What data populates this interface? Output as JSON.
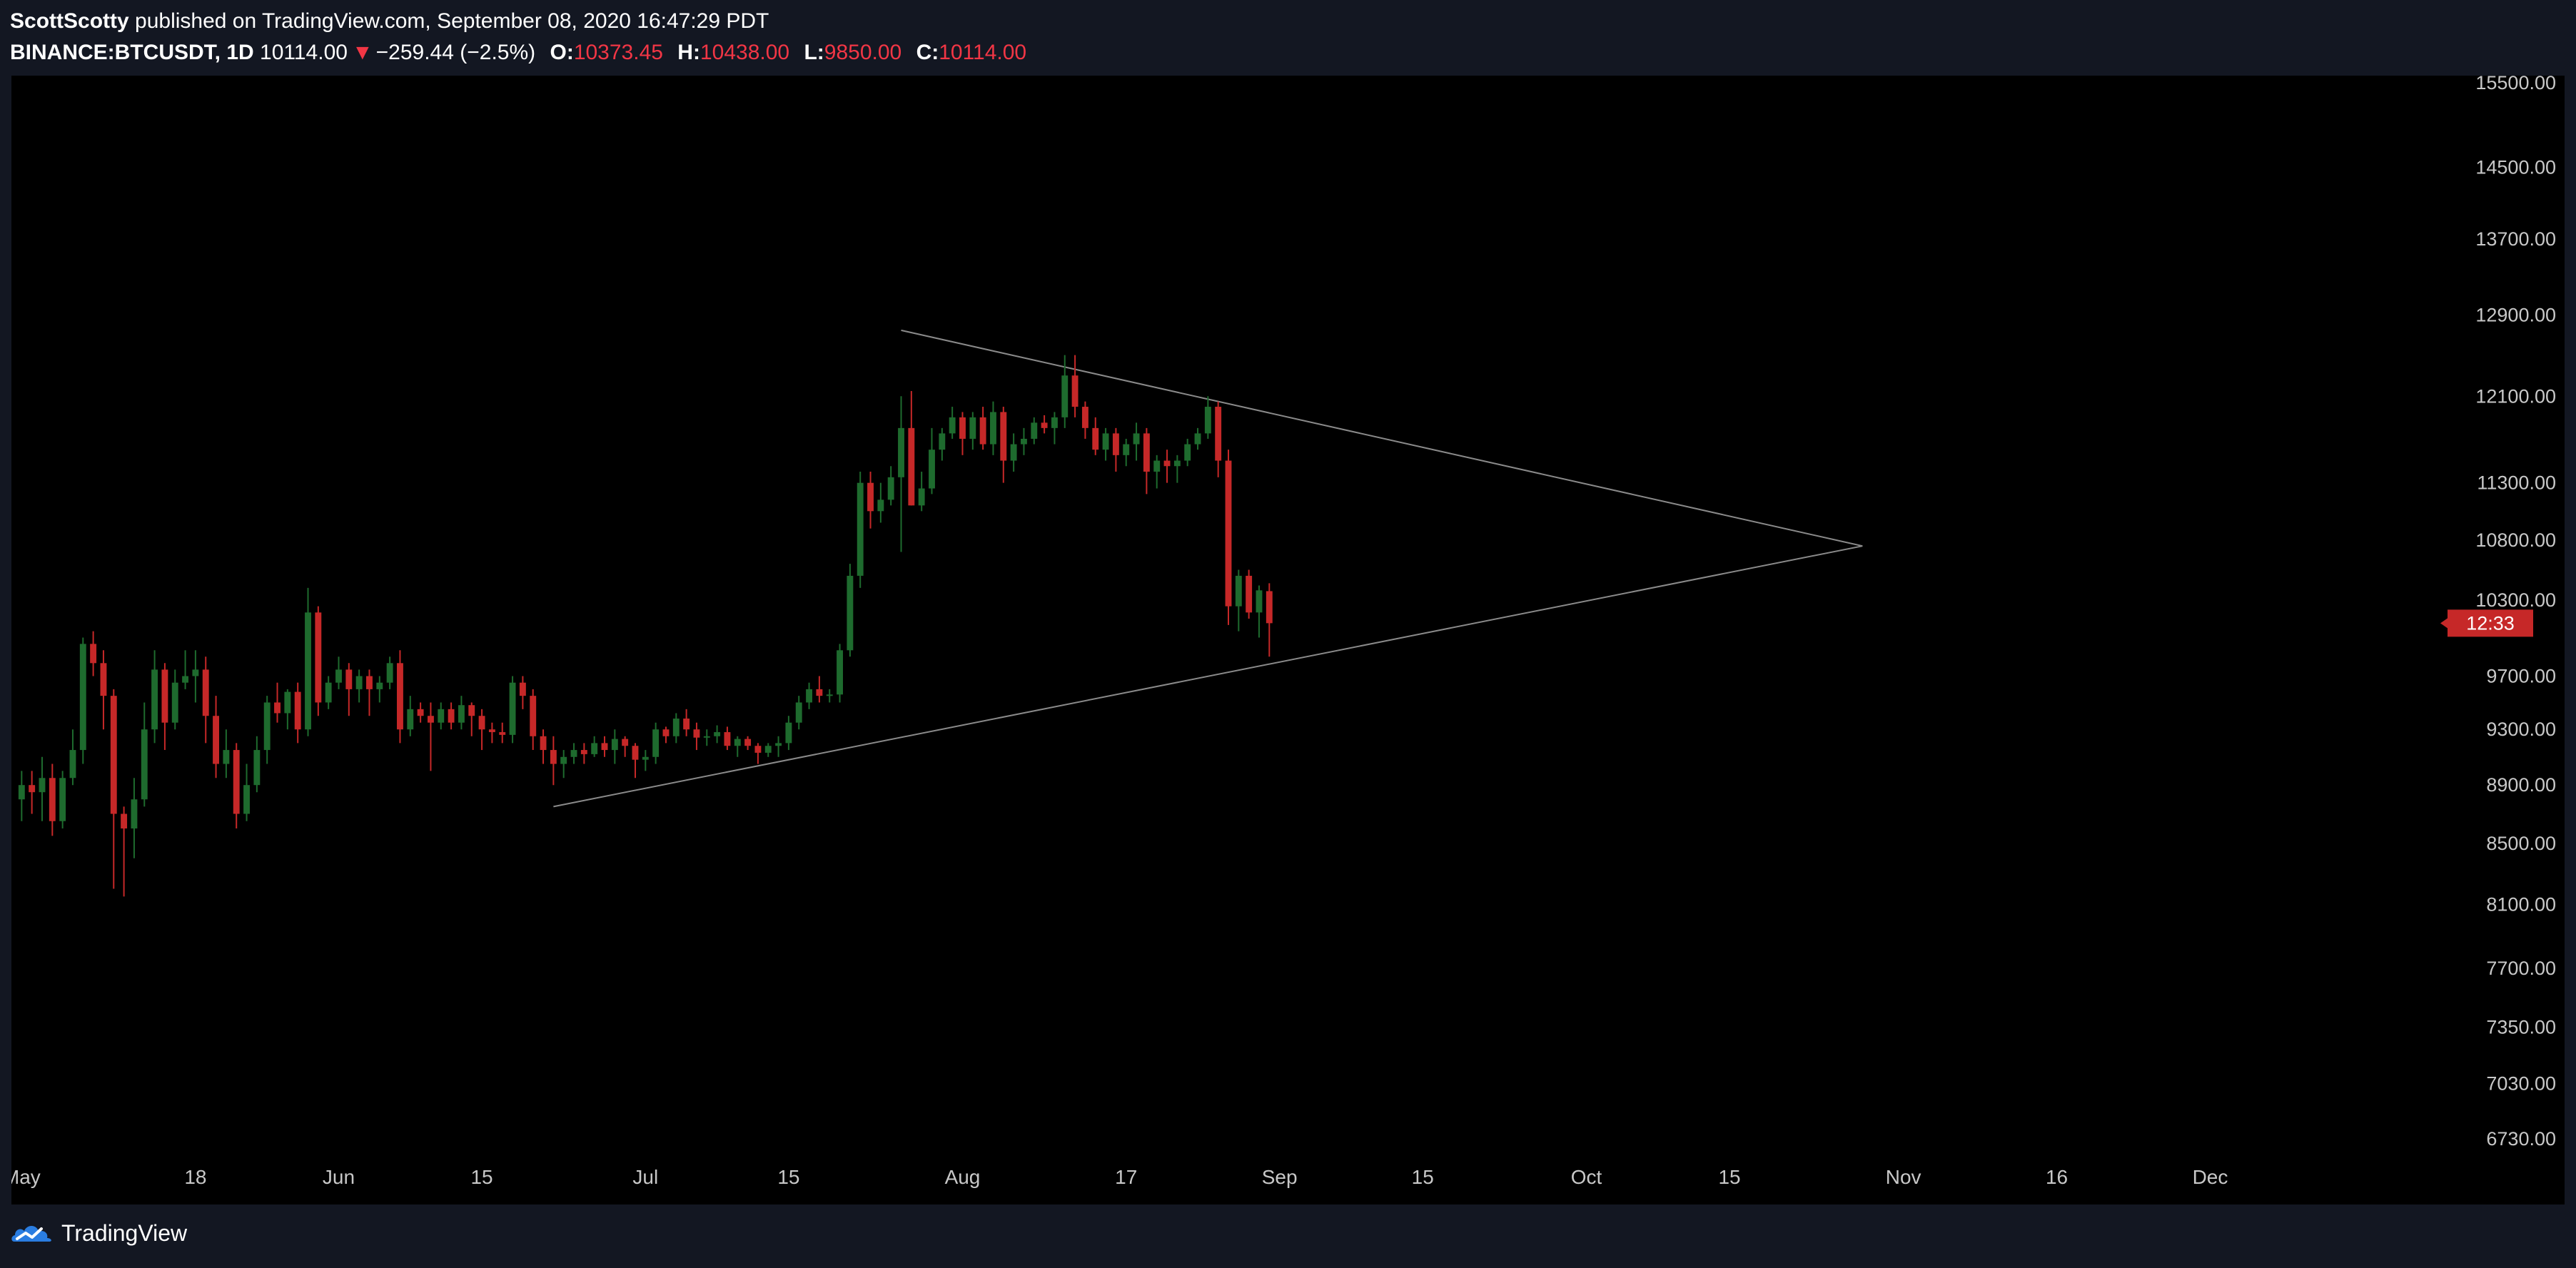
{
  "header": {
    "author": "ScottScotty",
    "published_text": "published on TradingView.com, September 08, 2020 16:47:29 PDT",
    "symbol": "BINANCE:BTCUSDT, 1D",
    "last": "10114.00",
    "arrow": "▼",
    "change": "−259.44 (−2.5%)",
    "open_label": "O:",
    "open_value": "10373.45",
    "high_label": "H:",
    "high_value": "10438.00",
    "low_label": "L:",
    "low_value": "9850.00",
    "close_label": "C:",
    "close_value": "10114.00"
  },
  "footer": {
    "brand": "TradingView"
  },
  "colors": {
    "background": "#000000",
    "chrome": "#131722",
    "up": "#26a69a",
    "up_body": "#1e6b2e",
    "down": "#c62828",
    "trendline": "#8a8a8a",
    "axis_text": "#c8c8c8",
    "countdown_bg": "#c62828"
  },
  "icons": {
    "logo": "tradingview-cloud-icon"
  },
  "chart_data": {
    "type": "candlestick",
    "symbol": "BINANCE:BTCUSDT",
    "interval": "1D",
    "x_start": "2020-05-01",
    "x_range": [
      "2020-04-30",
      "2020-12-24"
    ],
    "ylim": [
      6730,
      15500
    ],
    "y_scale": "log",
    "y_ticks": [
      "15500.00",
      "14500.00",
      "13700.00",
      "12900.00",
      "12100.00",
      "11300.00",
      "10800.00",
      "10300.00",
      "9700.00",
      "9300.00",
      "8900.00",
      "8500.00",
      "8100.00",
      "7700.00",
      "7350.00",
      "7030.00",
      "6730.00"
    ],
    "x_ticks": [
      {
        "date": "2020-05-01",
        "label": "May"
      },
      {
        "date": "2020-05-18",
        "label": "18"
      },
      {
        "date": "2020-06-01",
        "label": "Jun"
      },
      {
        "date": "2020-06-15",
        "label": "15"
      },
      {
        "date": "2020-07-01",
        "label": "Jul"
      },
      {
        "date": "2020-07-15",
        "label": "15"
      },
      {
        "date": "2020-08-01",
        "label": "Aug"
      },
      {
        "date": "2020-08-17",
        "label": "17"
      },
      {
        "date": "2020-09-01",
        "label": "Sep"
      },
      {
        "date": "2020-09-15",
        "label": "15"
      },
      {
        "date": "2020-10-01",
        "label": "Oct"
      },
      {
        "date": "2020-10-15",
        "label": "15"
      },
      {
        "date": "2020-11-01",
        "label": "Nov"
      },
      {
        "date": "2020-11-16",
        "label": "16"
      },
      {
        "date": "2020-12-01",
        "label": "Dec"
      }
    ],
    "ohlc": [
      [
        8800,
        9000,
        8650,
        8900
      ],
      [
        8900,
        9000,
        8700,
        8850
      ],
      [
        8850,
        9100,
        8650,
        8950
      ],
      [
        8950,
        9050,
        8550,
        8650
      ],
      [
        8650,
        9000,
        8600,
        8950
      ],
      [
        8950,
        9300,
        8900,
        9150
      ],
      [
        9150,
        10000,
        9050,
        9950
      ],
      [
        9950,
        10050,
        9700,
        9800
      ],
      [
        9800,
        9900,
        9300,
        9550
      ],
      [
        9550,
        9600,
        8200,
        8700
      ],
      [
        8700,
        8750,
        8150,
        8600
      ],
      [
        8600,
        8950,
        8400,
        8800
      ],
      [
        8800,
        9500,
        8750,
        9300
      ],
      [
        9300,
        9900,
        9200,
        9750
      ],
      [
        9750,
        9800,
        9150,
        9350
      ],
      [
        9350,
        9750,
        9300,
        9650
      ],
      [
        9650,
        9900,
        9600,
        9700
      ],
      [
        9700,
        9900,
        9500,
        9750
      ],
      [
        9750,
        9850,
        9200,
        9400
      ],
      [
        9400,
        9550,
        8950,
        9050
      ],
      [
        9050,
        9300,
        8950,
        9150
      ],
      [
        9150,
        9200,
        8600,
        8700
      ],
      [
        8700,
        9050,
        8650,
        8900
      ],
      [
        8900,
        9250,
        8850,
        9150
      ],
      [
        9150,
        9550,
        9050,
        9500
      ],
      [
        9500,
        9650,
        9350,
        9420
      ],
      [
        9420,
        9600,
        9300,
        9580
      ],
      [
        9580,
        9650,
        9200,
        9300
      ],
      [
        9300,
        10400,
        9250,
        10200
      ],
      [
        10200,
        10250,
        9400,
        9500
      ],
      [
        9500,
        9700,
        9450,
        9650
      ],
      [
        9650,
        9850,
        9600,
        9750
      ],
      [
        9750,
        9800,
        9400,
        9600
      ],
      [
        9600,
        9750,
        9500,
        9700
      ],
      [
        9700,
        9750,
        9400,
        9600
      ],
      [
        9600,
        9700,
        9500,
        9650
      ],
      [
        9650,
        9850,
        9600,
        9800
      ],
      [
        9800,
        9900,
        9200,
        9300
      ],
      [
        9300,
        9550,
        9250,
        9450
      ],
      [
        9450,
        9500,
        9350,
        9400
      ],
      [
        9400,
        9500,
        9000,
        9350
      ],
      [
        9350,
        9500,
        9300,
        9450
      ],
      [
        9450,
        9500,
        9300,
        9350
      ],
      [
        9350,
        9550,
        9300,
        9480
      ],
      [
        9480,
        9500,
        9250,
        9400
      ],
      [
        9400,
        9450,
        9150,
        9300
      ],
      [
        9300,
        9350,
        9200,
        9280
      ],
      [
        9280,
        9350,
        9200,
        9260
      ],
      [
        9260,
        9700,
        9200,
        9650
      ],
      [
        9650,
        9700,
        9450,
        9550
      ],
      [
        9550,
        9600,
        9150,
        9250
      ],
      [
        9250,
        9300,
        9050,
        9150
      ],
      [
        9150,
        9250,
        8900,
        9050
      ],
      [
        9050,
        9150,
        8950,
        9100
      ],
      [
        9100,
        9200,
        9050,
        9150
      ],
      [
        9150,
        9200,
        9050,
        9120
      ],
      [
        9120,
        9250,
        9100,
        9200
      ],
      [
        9200,
        9250,
        9100,
        9150
      ],
      [
        9150,
        9300,
        9050,
        9230
      ],
      [
        9230,
        9250,
        9100,
        9180
      ],
      [
        9180,
        9200,
        8950,
        9080
      ],
      [
        9080,
        9150,
        9000,
        9100
      ],
      [
        9100,
        9350,
        9050,
        9300
      ],
      [
        9300,
        9320,
        9200,
        9250
      ],
      [
        9250,
        9420,
        9200,
        9380
      ],
      [
        9380,
        9450,
        9250,
        9300
      ],
      [
        9300,
        9350,
        9150,
        9240
      ],
      [
        9240,
        9300,
        9180,
        9250
      ],
      [
        9250,
        9330,
        9200,
        9280
      ],
      [
        9280,
        9320,
        9150,
        9180
      ],
      [
        9180,
        9250,
        9100,
        9230
      ],
      [
        9230,
        9250,
        9150,
        9180
      ],
      [
        9180,
        9200,
        9050,
        9130
      ],
      [
        9130,
        9200,
        9100,
        9180
      ],
      [
        9180,
        9250,
        9100,
        9200
      ],
      [
        9200,
        9400,
        9150,
        9350
      ],
      [
        9350,
        9550,
        9300,
        9500
      ],
      [
        9500,
        9650,
        9450,
        9600
      ],
      [
        9600,
        9700,
        9500,
        9550
      ],
      [
        9550,
        9600,
        9500,
        9560
      ],
      [
        9560,
        9950,
        9500,
        9900
      ],
      [
        9900,
        10600,
        9850,
        10500
      ],
      [
        10500,
        11400,
        10400,
        11300
      ],
      [
        11300,
        11400,
        10900,
        11050
      ],
      [
        11050,
        11300,
        10950,
        11150
      ],
      [
        11150,
        11450,
        11100,
        11350
      ],
      [
        11350,
        12100,
        10700,
        11800
      ],
      [
        11800,
        12150,
        11100,
        11100
      ],
      [
        11100,
        11400,
        11050,
        11250
      ],
      [
        11250,
        11800,
        11200,
        11600
      ],
      [
        11600,
        11800,
        11500,
        11750
      ],
      [
        11750,
        12000,
        11700,
        11900
      ],
      [
        11900,
        11950,
        11550,
        11700
      ],
      [
        11700,
        11950,
        11600,
        11900
      ],
      [
        11900,
        12000,
        11600,
        11650
      ],
      [
        11650,
        12050,
        11550,
        11950
      ],
      [
        11950,
        12000,
        11300,
        11500
      ],
      [
        11500,
        11750,
        11400,
        11650
      ],
      [
        11650,
        11800,
        11550,
        11700
      ],
      [
        11700,
        11900,
        11650,
        11850
      ],
      [
        11850,
        11920,
        11750,
        11800
      ],
      [
        11800,
        11950,
        11650,
        11900
      ],
      [
        11900,
        12500,
        11800,
        12300
      ],
      [
        12300,
        12500,
        11900,
        12000
      ],
      [
        12000,
        12050,
        11700,
        11800
      ],
      [
        11800,
        11900,
        11550,
        11600
      ],
      [
        11600,
        11800,
        11500,
        11750
      ],
      [
        11750,
        11800,
        11400,
        11550
      ],
      [
        11550,
        11700,
        11450,
        11650
      ],
      [
        11650,
        11850,
        11500,
        11750
      ],
      [
        11750,
        11800,
        11200,
        11400
      ],
      [
        11400,
        11550,
        11250,
        11500
      ],
      [
        11500,
        11600,
        11300,
        11450
      ],
      [
        11450,
        11550,
        11300,
        11500
      ],
      [
        11500,
        11700,
        11450,
        11650
      ],
      [
        11650,
        11800,
        11600,
        11750
      ],
      [
        11750,
        12100,
        11700,
        12000
      ],
      [
        12000,
        12050,
        11350,
        11500
      ],
      [
        11500,
        11600,
        10100,
        10250
      ],
      [
        10250,
        10550,
        10050,
        10500
      ],
      [
        10500,
        10550,
        10150,
        10200
      ],
      [
        10200,
        10420,
        10000,
        10380
      ],
      [
        10373.45,
        10438,
        9850,
        10114
      ]
    ],
    "trendlines": [
      {
        "from": {
          "date": "2020-07-26",
          "price": 12747
        },
        "to": {
          "date": "2020-10-28",
          "price": 10750
        }
      },
      {
        "from": {
          "date": "2020-06-22",
          "price": 8750
        },
        "to": {
          "date": "2020-10-28",
          "price": 10750
        }
      }
    ],
    "countdown": {
      "label": "12:33",
      "price": 10114
    }
  }
}
